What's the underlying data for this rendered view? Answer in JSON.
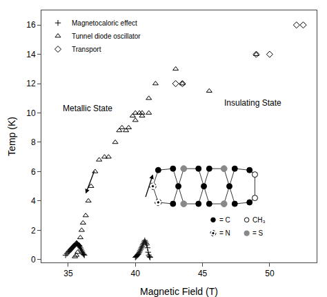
{
  "chart_data": {
    "type": "scatter",
    "xlabel": "Magnetic Field (T)",
    "ylabel": "Temp (K)",
    "xlim": [
      33.0,
      53.5
    ],
    "ylim": [
      -0.2,
      17.0
    ],
    "xticks": [
      35,
      40,
      45,
      50
    ],
    "yticks": [
      0,
      2,
      4,
      6,
      8,
      10,
      12,
      14,
      16
    ],
    "grid": false,
    "legend": "upper left",
    "series": [
      {
        "name": "Magnetocaloric effect",
        "color": "#000000",
        "marker": "plus",
        "x": [
          34.8,
          34.9,
          35.0,
          35.05,
          35.1,
          35.15,
          35.2,
          35.25,
          35.3,
          35.35,
          35.4,
          35.45,
          35.5,
          35.55,
          35.6,
          35.65,
          35.7,
          35.75,
          35.8,
          35.85,
          35.9,
          35.95,
          36.0,
          36.05,
          36.1,
          36.15,
          36.2,
          40.0,
          40.05,
          40.1,
          40.15,
          40.2,
          40.25,
          40.3,
          40.35,
          40.4,
          40.45,
          40.5,
          40.55,
          40.6,
          40.65,
          40.7,
          40.75,
          40.8,
          40.85,
          40.9,
          40.95,
          41.0,
          41.05,
          41.1
        ],
        "values": [
          0.3,
          0.4,
          0.5,
          0.55,
          0.6,
          0.65,
          0.7,
          0.75,
          0.8,
          0.85,
          0.9,
          0.95,
          1.0,
          1.05,
          1.1,
          1.1,
          1.05,
          1.0,
          0.95,
          0.9,
          0.8,
          0.7,
          0.6,
          0.5,
          0.4,
          0.35,
          0.3,
          0.15,
          0.2,
          0.25,
          0.3,
          0.35,
          0.4,
          0.5,
          0.6,
          0.7,
          0.8,
          0.9,
          1.0,
          1.1,
          1.2,
          1.3,
          1.2,
          1.1,
          1.0,
          0.8,
          0.5,
          0.3,
          0.2,
          0.15
        ]
      },
      {
        "name": "Tunnel diode oscillator",
        "color": "#000000",
        "marker": "triangle",
        "x": [
          35.5,
          35.6,
          35.7,
          35.8,
          35.9,
          36.0,
          36.1,
          36.3,
          36.5,
          36.7,
          37.0,
          37.3,
          37.7,
          38.0,
          38.5,
          38.8,
          39.0,
          39.3,
          39.5,
          39.8,
          40.0,
          40.0,
          40.3,
          40.5,
          40.5,
          41.0,
          41.0,
          41.5,
          43.0,
          43.5,
          45.5,
          49.0
        ],
        "values": [
          0.2,
          0.3,
          0.5,
          1.0,
          1.5,
          2.0,
          2.5,
          3.0,
          4.0,
          5.0,
          6.0,
          6.8,
          7.0,
          7.0,
          8.0,
          8.8,
          9.0,
          8.8,
          9.0,
          9.8,
          10.0,
          9.5,
          10.0,
          10.0,
          9.8,
          11.0,
          10.0,
          12.0,
          13.0,
          12.0,
          11.5,
          14.0
        ]
      },
      {
        "name": "Transport",
        "color": "#000000",
        "marker": "diamond",
        "x": [
          43.0,
          43.5,
          49.0,
          50.0,
          52.0,
          52.5
        ],
        "values": [
          12.0,
          12.0,
          14.0,
          14.0,
          16.0,
          16.0
        ]
      }
    ],
    "annotations": [
      "Metallic State",
      "Insulating State",
      "= C",
      "CH₃",
      "= N",
      "= S"
    ]
  }
}
